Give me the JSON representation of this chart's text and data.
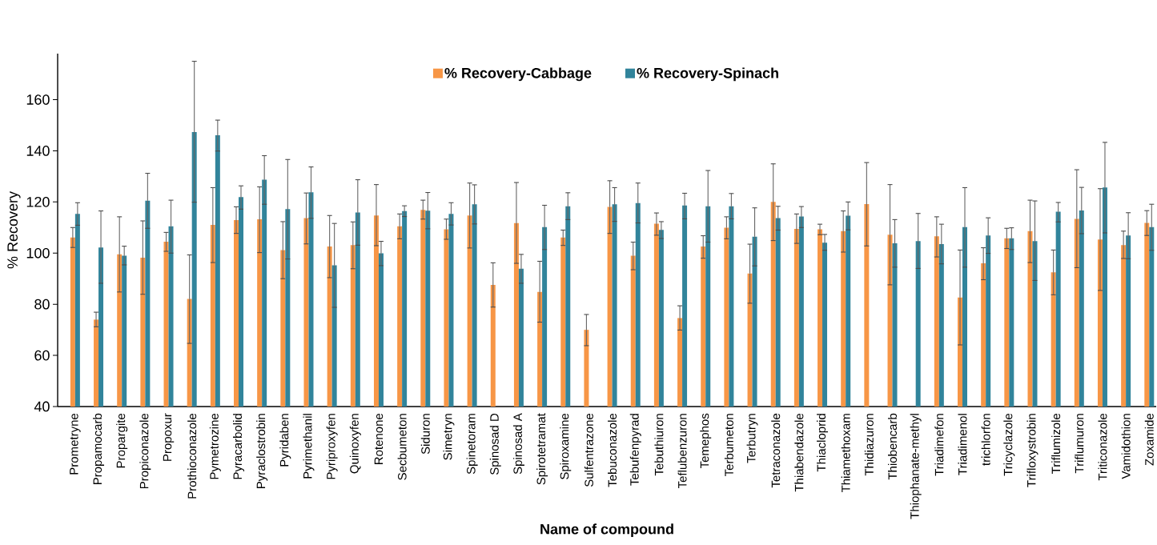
{
  "chart_data": {
    "type": "bar",
    "xlabel": "Name of compound",
    "ylabel": "% Recovery",
    "categories": [
      "Prometryne",
      "Propamocarb",
      "Propargite",
      "Propiconazole",
      "Propoxur",
      "Prothioconazole",
      "Pymetrozine",
      "Pyracarbolid",
      "Pyraclostrobin",
      "Pyridaben",
      "Pyrimethanil",
      "Pyriproxyfen",
      "Quinoxyfen",
      "Rotenone",
      "Secbumeton",
      "Siduron",
      "Simetryn",
      "Spinetoram",
      "Spinosad D",
      "Spinosad A",
      "Spirotetramat",
      "Spiroxamine",
      "Sulfentrazone",
      "Tebuconazole",
      "Tebufenpyrad",
      "Tebuthiuron",
      "Teflubenzuron",
      "Temephos",
      "Terbumeton",
      "Terbutryn",
      "Tetraconazole",
      "Thiabendazole",
      "Thiacloprid",
      "Thiamethoxam",
      "Thidiazuron",
      "Thiobencarb",
      "Thiophanate-methyl",
      "Triadimefon",
      "Triadimenol",
      "trichlorfon",
      "Tricyclazole",
      "Trifloxystrobin",
      "Triflumizole",
      "Triflumuron",
      "Triticonazole",
      "Vamidothion",
      "Zoxamide"
    ],
    "series": [
      {
        "name": "% Recovery-Cabbage",
        "color": "#f79646",
        "values": [
          106.1,
          74.0,
          99.5,
          98.2,
          104.5,
          82.1,
          111.0,
          112.9,
          113.2,
          101.2,
          113.7,
          102.6,
          103.1,
          114.7,
          110.5,
          116.9,
          109.3,
          114.7,
          87.6,
          111.7,
          84.8,
          106.1,
          70.0,
          118.1,
          99.0,
          111.5,
          74.6,
          102.6,
          109.9,
          92.0,
          120.0,
          109.5,
          109.3,
          108.6,
          119.2,
          107.2,
          null,
          106.6,
          82.6,
          96.0,
          105.8,
          108.6,
          92.5,
          113.4,
          105.3,
          103.1,
          111.8
        ],
        "errors": [
          [
            102.2,
            110.0
          ],
          [
            71.2,
            76.9
          ],
          [
            84.8,
            114.2
          ],
          [
            83.9,
            112.6
          ],
          [
            100.7,
            108.1
          ],
          [
            64.7,
            99.3
          ],
          [
            96.3,
            125.6
          ],
          [
            107.7,
            118.1
          ],
          [
            100.2,
            125.9
          ],
          [
            90.0,
            112.3
          ],
          [
            103.6,
            123.5
          ],
          [
            90.4,
            114.7
          ],
          [
            93.9,
            112.2
          ],
          [
            102.9,
            126.8
          ],
          [
            105.6,
            115.3
          ],
          [
            113.3,
            120.7
          ],
          [
            105.4,
            113.3
          ],
          [
            102.0,
            127.4
          ],
          [
            78.9,
            96.2
          ],
          [
            96.0,
            127.6
          ],
          [
            73.0,
            96.8
          ],
          [
            103.0,
            109.0
          ],
          [
            63.8,
            76.0
          ],
          [
            107.7,
            128.3
          ],
          [
            93.5,
            104.3
          ],
          [
            107.0,
            115.7
          ],
          [
            69.9,
            79.4
          ],
          [
            98.0,
            106.8
          ],
          [
            105.6,
            114.2
          ],
          [
            80.4,
            103.5
          ],
          [
            104.9,
            134.9
          ],
          [
            103.8,
            115.3
          ],
          [
            107.2,
            111.3
          ],
          [
            100.4,
            116.5
          ],
          [
            102.8,
            135.4
          ],
          [
            87.6,
            126.8
          ],
          null,
          [
            98.5,
            114.2
          ],
          [
            64.1,
            101.2
          ],
          [
            89.6,
            102.1
          ],
          [
            101.8,
            109.7
          ],
          [
            96.3,
            120.7
          ],
          [
            83.7,
            101.2
          ],
          [
            94.3,
            132.6
          ],
          [
            85.4,
            125.2
          ],
          [
            97.9,
            108.6
          ],
          [
            106.9,
            116.6
          ]
        ]
      },
      {
        "name": "% Recovery-Spinach",
        "color": "#31849b",
        "values": [
          115.3,
          102.2,
          99.0,
          120.5,
          110.5,
          147.3,
          146.1,
          121.9,
          128.7,
          117.2,
          123.8,
          95.2,
          115.9,
          99.9,
          116.4,
          116.6,
          115.3,
          119.1,
          null,
          93.9,
          110.2,
          118.3,
          null,
          119.1,
          119.6,
          109.1,
          118.6,
          118.3,
          118.3,
          106.4,
          113.7,
          114.3,
          104.1,
          114.6,
          null,
          103.8,
          104.7,
          103.5,
          110.2,
          106.9,
          105.8,
          104.7,
          116.2,
          116.7,
          125.7,
          106.9,
          110.2
        ],
        "errors": [
          [
            110.9,
            119.7
          ],
          [
            88.2,
            116.5
          ],
          [
            95.4,
            102.7
          ],
          [
            109.7,
            131.2
          ],
          [
            100.0,
            120.7
          ],
          [
            119.9,
            175.0
          ],
          [
            139.9,
            152.0
          ],
          [
            117.2,
            126.3
          ],
          [
            119.1,
            138.1
          ],
          [
            97.7,
            136.6
          ],
          [
            113.6,
            133.7
          ],
          [
            78.8,
            111.6
          ],
          [
            103.1,
            128.7
          ],
          [
            95.1,
            104.6
          ],
          [
            114.3,
            118.5
          ],
          [
            109.5,
            123.7
          ],
          [
            111.0,
            119.7
          ],
          [
            111.4,
            126.7
          ],
          null,
          [
            88.2,
            99.5
          ],
          [
            101.4,
            118.7
          ],
          [
            113.1,
            123.6
          ],
          null,
          [
            112.4,
            125.6
          ],
          [
            111.8,
            127.4
          ],
          [
            105.7,
            112.3
          ],
          [
            113.4,
            123.4
          ],
          [
            104.3,
            132.3
          ],
          [
            113.4,
            123.3
          ],
          [
            95.0,
            117.7
          ],
          [
            109.0,
            118.3
          ],
          [
            110.0,
            118.2
          ],
          [
            101.1,
            107.3
          ],
          [
            109.1,
            120.0
          ],
          null,
          [
            94.5,
            113.1
          ],
          [
            94.0,
            115.5
          ],
          [
            95.8,
            111.3
          ],
          [
            94.5,
            125.6
          ],
          [
            99.9,
            113.8
          ],
          [
            101.4,
            109.9
          ],
          [
            89.3,
            120.4
          ],
          [
            112.2,
            119.8
          ],
          [
            107.6,
            125.7
          ],
          [
            107.9,
            143.3
          ],
          [
            97.8,
            115.8
          ],
          [
            101.1,
            119.1
          ]
        ]
      }
    ],
    "ylim": [
      40,
      178
    ],
    "yticks": [
      40,
      60,
      80,
      100,
      120,
      140,
      160
    ],
    "grid": false,
    "legend": "top"
  }
}
